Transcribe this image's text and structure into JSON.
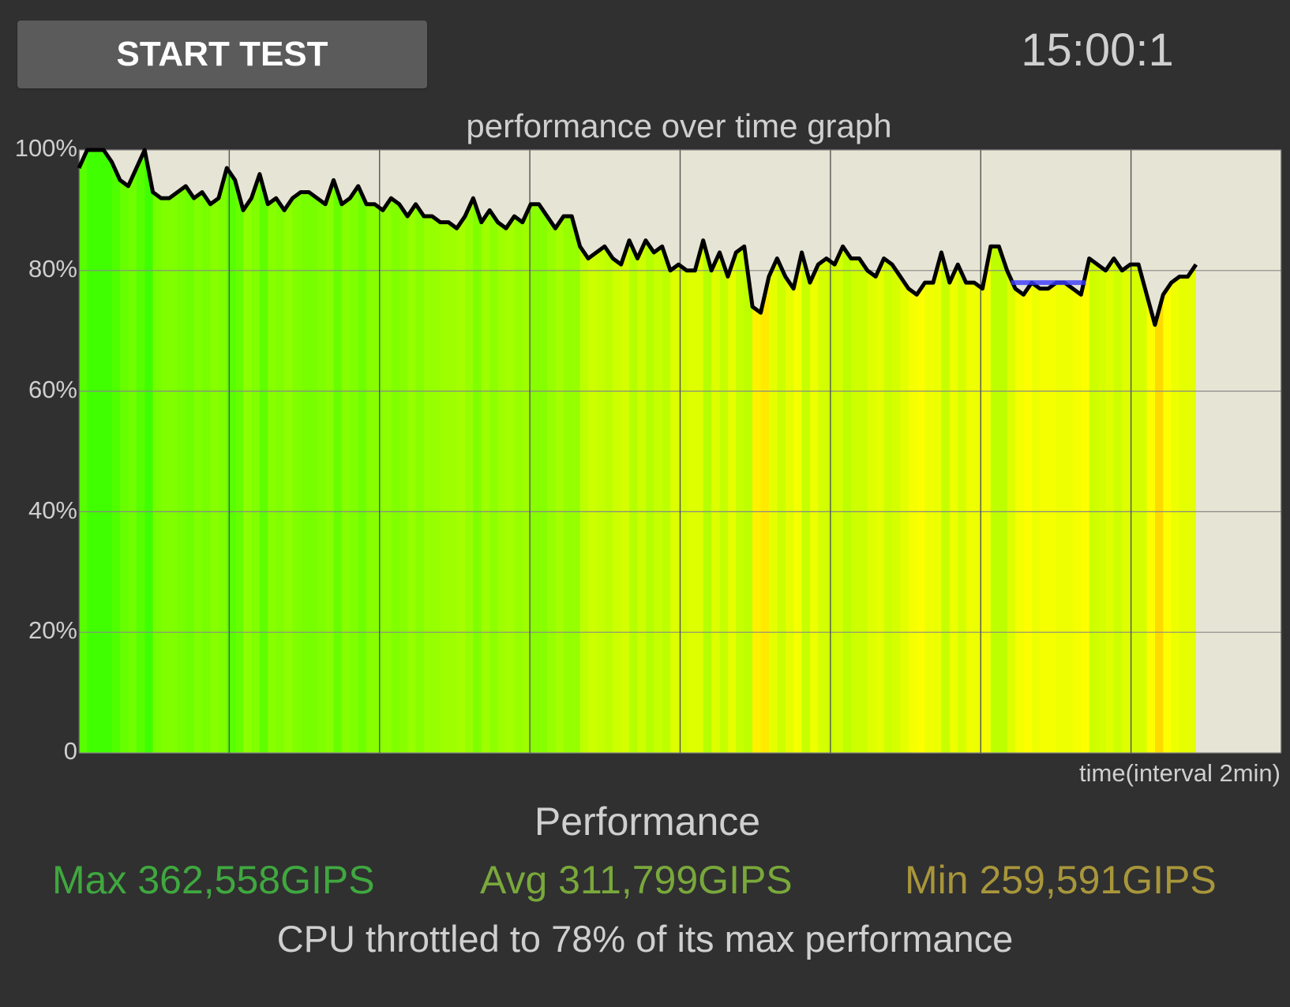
{
  "toolbar": {
    "start_label": "START TEST",
    "clock": "15:00:1"
  },
  "summary": {
    "heading": "Performance",
    "max": "Max 362,558GIPS",
    "avg": "Avg 311,799GIPS",
    "min": "Min 259,591GIPS",
    "throttle_text": "CPU throttled to 78% of its max performance",
    "colors": {
      "max": "#3fa83f",
      "avg": "#79a83b",
      "min": "#a8963b"
    }
  },
  "chart_data": {
    "type": "line",
    "title": "performance over time graph",
    "xlabel": "time(interval 2min)",
    "ylabel": "",
    "ylim": [
      0,
      100
    ],
    "xlim_min": [
      0,
      16
    ],
    "x_grid_interval_min": 2,
    "yticks": [
      "0",
      "20%",
      "40%",
      "60%",
      "80%",
      "100%"
    ],
    "ytick_values": [
      0,
      20,
      40,
      60,
      80,
      100
    ],
    "grid": true,
    "sample_interval_min": 0.1093,
    "values": [
      97,
      100,
      100,
      100,
      98,
      95,
      94,
      97,
      100,
      93,
      92,
      92,
      93,
      94,
      92,
      93,
      91,
      92,
      97,
      95,
      90,
      92,
      96,
      91,
      92,
      90,
      92,
      93,
      93,
      92,
      91,
      95,
      91,
      92,
      94,
      91,
      91,
      90,
      92,
      91,
      89,
      91,
      89,
      89,
      88,
      88,
      87,
      89,
      92,
      88,
      90,
      88,
      87,
      89,
      88,
      91,
      91,
      89,
      87,
      89,
      89,
      84,
      82,
      83,
      84,
      82,
      81,
      85,
      82,
      85,
      83,
      84,
      80,
      81,
      80,
      80,
      85,
      80,
      83,
      79,
      83,
      84,
      74,
      73,
      79,
      82,
      79,
      77,
      83,
      78,
      81,
      82,
      81,
      84,
      82,
      82,
      80,
      79,
      82,
      81,
      79,
      77,
      76,
      78,
      78,
      83,
      78,
      81,
      78,
      78,
      77,
      84,
      84,
      80,
      77,
      76,
      78,
      77,
      77,
      78,
      78,
      77,
      76,
      82,
      81,
      80,
      82,
      80,
      81,
      81,
      76,
      71,
      76,
      78,
      79,
      79,
      81
    ],
    "throttle_marker": {
      "value": 78,
      "x_range_min": [
        12.4,
        13.4
      ],
      "color": "#3a3aff"
    },
    "colors": {
      "plot_bg": "#e6e4d4",
      "line": "#000000",
      "grid": "#555555"
    }
  }
}
